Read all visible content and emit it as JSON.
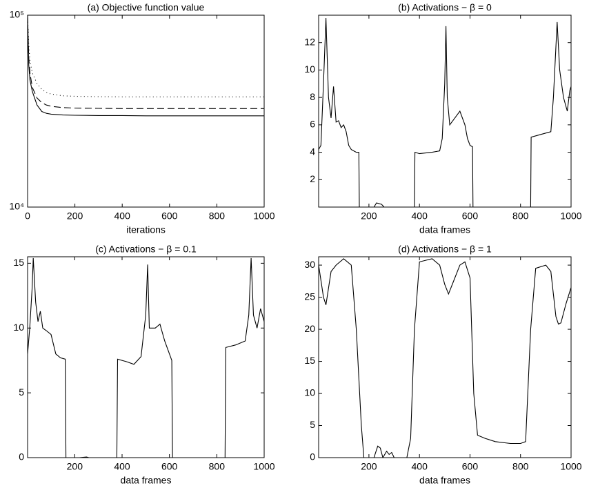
{
  "chart_data": [
    {
      "type": "line",
      "title": "(a) Objective function value",
      "xlabel": "iterations",
      "log_y": true,
      "x": [
        0,
        5,
        10,
        20,
        40,
        60,
        80,
        100,
        150,
        200,
        300,
        400,
        500,
        600,
        700,
        800,
        900,
        1000
      ],
      "series": [
        {
          "color": "#000000",
          "dash": "dotted",
          "values": [
            100000,
            70000,
            58000,
            50000,
            44000,
            41000,
            39500,
            38800,
            38000,
            37800,
            37600,
            37500,
            37500,
            37500,
            37500,
            37500,
            37500,
            37500
          ]
        },
        {
          "color": "#000000",
          "dash": "dashed",
          "values": [
            100000,
            60000,
            50000,
            42000,
            37000,
            35000,
            34000,
            33500,
            33000,
            32800,
            32700,
            32600,
            32600,
            32600,
            32600,
            32600,
            32600,
            32600
          ]
        },
        {
          "color": "#000000",
          "dash": "solid",
          "values": [
            100000,
            55000,
            46000,
            40000,
            34000,
            31500,
            30800,
            30500,
            30200,
            30100,
            30000,
            30000,
            29900,
            29900,
            29900,
            29900,
            29900,
            29900
          ]
        }
      ],
      "xlim": [
        0,
        1000
      ],
      "ylim": [
        10000,
        100000
      ],
      "xticks": [
        0,
        200,
        400,
        600,
        800,
        1000
      ],
      "yticks": [
        {
          "value": 10000,
          "label": "10⁴"
        },
        {
          "value": 100000,
          "label": "10⁵"
        }
      ]
    },
    {
      "type": "line",
      "title": "(b) Activations − β = 0",
      "xlabel": "data frames",
      "x": [
        1,
        10,
        20,
        30,
        40,
        50,
        60,
        70,
        80,
        90,
        100,
        110,
        120,
        130,
        140,
        150,
        160,
        162,
        220,
        230,
        250,
        260,
        380,
        382,
        400,
        450,
        480,
        490,
        500,
        505,
        510,
        520,
        540,
        560,
        580,
        590,
        600,
        610,
        612,
        840,
        842,
        880,
        920,
        930,
        945,
        955,
        970,
        985,
        995,
        1000
      ],
      "series": [
        {
          "color": "#000000",
          "dash": "solid",
          "values": [
            4.2,
            4.5,
            9,
            13.8,
            8,
            6.5,
            8.8,
            6.2,
            6.3,
            5.8,
            6,
            5.5,
            4.5,
            4.2,
            4.1,
            4,
            4,
            0,
            0,
            0.3,
            0.2,
            0,
            0,
            4,
            3.9,
            4,
            4.1,
            5,
            9,
            13.2,
            8,
            6,
            6.5,
            7,
            6,
            5,
            4.5,
            4.4,
            0,
            0,
            5.1,
            5.3,
            5.5,
            8,
            13.5,
            10,
            8,
            7,
            8.5,
            8.8
          ]
        }
      ],
      "xlim": [
        1,
        1000
      ],
      "ylim": [
        0,
        14
      ],
      "xticks": [
        200,
        400,
        600,
        800,
        1000
      ],
      "yticks": [
        2,
        4,
        6,
        8,
        10,
        12
      ]
    },
    {
      "type": "line",
      "title": "(c) Activations − β = 0.1",
      "xlabel": "data frames",
      "x": [
        1,
        10,
        20,
        25,
        35,
        45,
        55,
        65,
        80,
        100,
        120,
        140,
        160,
        163,
        220,
        250,
        260,
        378,
        381,
        420,
        450,
        480,
        500,
        508,
        515,
        540,
        560,
        580,
        600,
        610,
        613,
        835,
        838,
        880,
        920,
        935,
        945,
        955,
        970,
        985,
        1000
      ],
      "series": [
        {
          "color": "#000000",
          "dash": "solid",
          "values": [
            8,
            10,
            13,
            15.4,
            12,
            10.5,
            11.3,
            10,
            9.8,
            9.5,
            8,
            7.7,
            7.6,
            0,
            0,
            0.05,
            0,
            0,
            7.6,
            7.4,
            7.2,
            7.8,
            11,
            14.9,
            10,
            10,
            10.3,
            9,
            8,
            7.5,
            0,
            0,
            8.5,
            8.7,
            9,
            11,
            15.4,
            11,
            10,
            11.5,
            10.5
          ]
        }
      ],
      "xlim": [
        1,
        1000
      ],
      "ylim": [
        0,
        15.5
      ],
      "xticks": [
        200,
        400,
        600,
        800,
        1000
      ],
      "yticks": [
        0,
        5,
        10,
        15
      ]
    },
    {
      "type": "line",
      "title": "(d) Activations − β = 1",
      "xlabel": "data frames",
      "x": [
        1,
        20,
        30,
        50,
        70,
        100,
        130,
        150,
        170,
        180,
        220,
        235,
        245,
        255,
        270,
        280,
        290,
        300,
        350,
        365,
        380,
        400,
        450,
        480,
        500,
        515,
        530,
        560,
        580,
        600,
        615,
        630,
        660,
        700,
        760,
        800,
        820,
        840,
        860,
        900,
        920,
        940,
        950,
        960,
        980,
        1000
      ],
      "series": [
        {
          "color": "#000000",
          "dash": "solid",
          "values": [
            30,
            25,
            23.8,
            29,
            30,
            31,
            30,
            20,
            5,
            0,
            0,
            1.8,
            1.5,
            0,
            1,
            0.5,
            0.8,
            0,
            0,
            3,
            20,
            30.5,
            31,
            30,
            27,
            25.5,
            27,
            30,
            30.5,
            28,
            10,
            3.5,
            3,
            2.5,
            2.2,
            2.2,
            2.5,
            20,
            29.5,
            30,
            29,
            22,
            20.8,
            21,
            24,
            26.5
          ]
        }
      ],
      "xlim": [
        1,
        1000
      ],
      "ylim": [
        0,
        31.3
      ],
      "xticks": [
        200,
        400,
        600,
        800,
        1000
      ],
      "yticks": [
        0,
        5,
        10,
        15,
        20,
        25,
        30
      ]
    }
  ]
}
